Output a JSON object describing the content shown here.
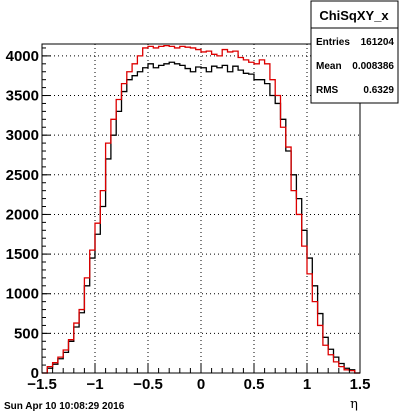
{
  "chart_data": {
    "type": "histogram",
    "title": "",
    "xlabel": "η",
    "ylabel": "",
    "xlim": [
      -1.5,
      1.5
    ],
    "ylim": [
      0,
      4150
    ],
    "x_ticks": [
      "−1.5",
      "−1",
      "−0.5",
      "0",
      "0.5",
      "1",
      "1.5"
    ],
    "y_ticks": [
      "0",
      "500",
      "1000",
      "1500",
      "2000",
      "2500",
      "3000",
      "3500",
      "4000"
    ],
    "grid": true,
    "bin_start": -1.5,
    "bin_width": 0.05,
    "series": [
      {
        "color": "#000000",
        "values": [
          0,
          60,
          110,
          180,
          260,
          400,
          580,
          760,
          1100,
          1450,
          1750,
          2100,
          2700,
          3000,
          3300,
          3550,
          3700,
          3750,
          3800,
          3850,
          3900,
          3850,
          3880,
          3900,
          3920,
          3900,
          3880,
          3840,
          3800,
          3860,
          3850,
          3800,
          3870,
          3850,
          3880,
          3800,
          3870,
          3820,
          3780,
          3770,
          3700,
          3700,
          3650,
          3500,
          3400,
          3200,
          2800,
          2500,
          2200,
          1800,
          1450,
          1100,
          750,
          450,
          300,
          200,
          120,
          60,
          40,
          0
        ]
      },
      {
        "color": "#dd0000",
        "values": [
          0,
          80,
          130,
          200,
          290,
          420,
          630,
          800,
          1200,
          1550,
          1890,
          2300,
          2900,
          3200,
          3450,
          3650,
          3800,
          3900,
          4000,
          4100,
          4120,
          4100,
          4120,
          4130,
          4120,
          4100,
          4120,
          4110,
          4100,
          4080,
          4050,
          4060,
          4020,
          4000,
          4080,
          4050,
          4060,
          3980,
          3950,
          3920,
          3900,
          3950,
          3900,
          3700,
          3500,
          3100,
          2850,
          2300,
          2000,
          1600,
          1250,
          900,
          600,
          350,
          230,
          140,
          80,
          40,
          30,
          0
        ]
      }
    ]
  },
  "stats": {
    "title": "ChiSqXY_x",
    "entries_label": "Entries",
    "entries_value": "161204",
    "mean_label": "Mean",
    "mean_value": "0.008386",
    "rms_label": "RMS",
    "rms_value": "0.6329"
  },
  "footer": {
    "timestamp": "Sun Apr 10 10:08:29 2016"
  }
}
